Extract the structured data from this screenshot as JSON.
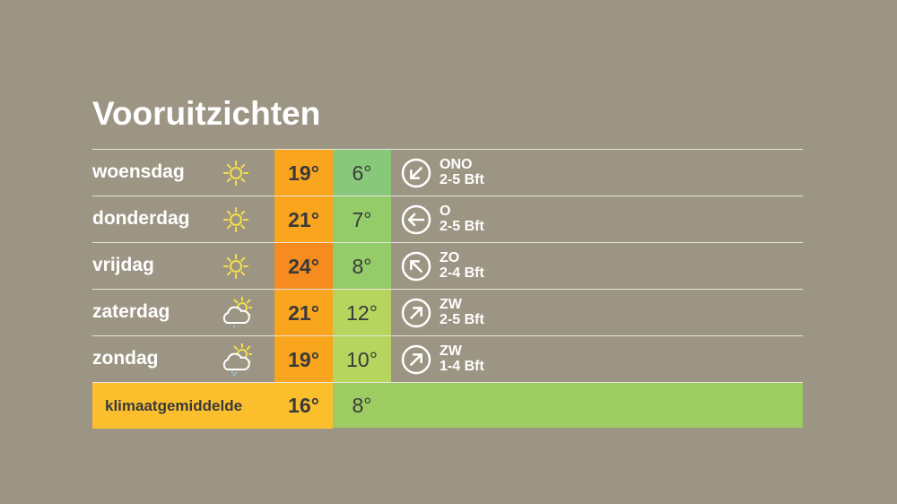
{
  "title": "Vooruitzichten",
  "colors": {
    "background": "#9d9584",
    "max_warm": "#f9a51e",
    "max_hot": "#f68b1f",
    "min_cool": "#88c87a",
    "min_mild": "#94cc6a",
    "min_warm": "#b6d55f",
    "climate_max": "#fbbf2e",
    "climate_min": "#9ccc62"
  },
  "days": [
    {
      "day": "woensdag",
      "icon": "sun-icon",
      "max": "19°",
      "min": "6°",
      "max_color": "#f9a51e",
      "min_color": "#88c87a",
      "wind_dir": "ONO",
      "wind_force": "2-5 Bft",
      "arrow_rotation_deg": 225
    },
    {
      "day": "donderdag",
      "icon": "sun-icon",
      "max": "21°",
      "min": "7°",
      "max_color": "#f9a51e",
      "min_color": "#94cc6a",
      "wind_dir": "O",
      "wind_force": "2-5 Bft",
      "arrow_rotation_deg": 270
    },
    {
      "day": "vrijdag",
      "icon": "sun-icon",
      "max": "24°",
      "min": "8°",
      "max_color": "#f68b1f",
      "min_color": "#94cc6a",
      "wind_dir": "ZO",
      "wind_force": "2-4 Bft",
      "arrow_rotation_deg": 315
    },
    {
      "day": "zaterdag",
      "icon": "partly-cloudy-drizzle-icon",
      "max": "21°",
      "min": "12°",
      "max_color": "#f9a51e",
      "min_color": "#b6d55f",
      "wind_dir": "ZW",
      "wind_force": "2-5 Bft",
      "arrow_rotation_deg": 45
    },
    {
      "day": "zondag",
      "icon": "partly-cloudy-rain-icon",
      "max": "19°",
      "min": "10°",
      "max_color": "#f9a51e",
      "min_color": "#b6d55f",
      "wind_dir": "ZW",
      "wind_force": "1-4 Bft",
      "arrow_rotation_deg": 45
    }
  ],
  "climate": {
    "label": "klimaatgemiddelde",
    "max": "16°",
    "min": "8°"
  }
}
